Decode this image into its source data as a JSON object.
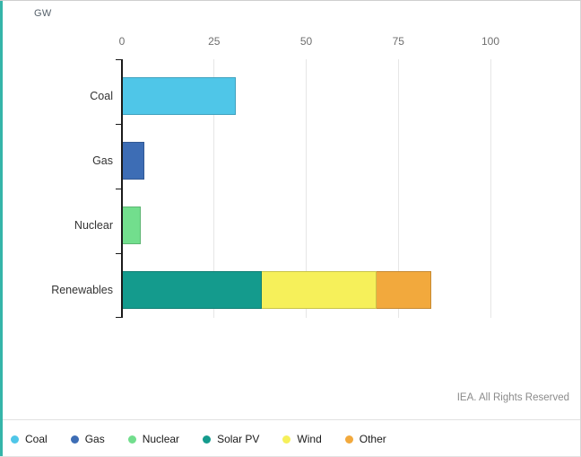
{
  "footer": {
    "credit": "IEA. All Rights Reserved"
  },
  "chart_data": {
    "type": "bar",
    "orientation": "horizontal",
    "unit": "GW",
    "axis": {
      "position": "top",
      "ticks": [
        0,
        25,
        50,
        75,
        100
      ],
      "range": [
        0,
        124
      ],
      "gridlines": true
    },
    "categories": [
      "Coal",
      "Gas",
      "Nuclear",
      "Renewables"
    ],
    "bars": [
      {
        "category": "Coal",
        "segments": [
          {
            "name": "Coal",
            "value": 31,
            "color": "#4FC6E8"
          }
        ]
      },
      {
        "category": "Gas",
        "segments": [
          {
            "name": "Gas",
            "value": 6,
            "color": "#3D6DB5"
          }
        ]
      },
      {
        "category": "Nuclear",
        "segments": [
          {
            "name": "Nuclear",
            "value": 5,
            "color": "#72DE8D"
          }
        ]
      },
      {
        "category": "Renewables",
        "segments": [
          {
            "name": "Solar PV",
            "value": 38,
            "color": "#149B8D"
          },
          {
            "name": "Wind",
            "value": 31,
            "color": "#F6F05A"
          },
          {
            "name": "Other",
            "value": 15,
            "color": "#F2A93D"
          }
        ]
      }
    ],
    "legend": {
      "position": "bottom",
      "entries": [
        {
          "label": "Coal",
          "color": "#4FC6E8"
        },
        {
          "label": "Gas",
          "color": "#3D6DB5"
        },
        {
          "label": "Nuclear",
          "color": "#72DE8D"
        },
        {
          "label": "Solar PV",
          "color": "#149B8D"
        },
        {
          "label": "Wind",
          "color": "#F6F05A"
        },
        {
          "label": "Other",
          "color": "#F2A93D"
        }
      ]
    }
  }
}
